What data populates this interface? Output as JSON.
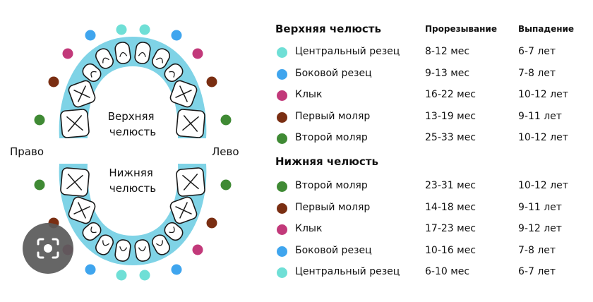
{
  "diagram": {
    "upper_label_line1": "Верхняя",
    "upper_label_line2": "челюсть",
    "lower_label_line1": "Нижняя",
    "lower_label_line2": "челюсть",
    "left_side": "Право",
    "right_side": "Лево"
  },
  "colors": {
    "central_incisor": "#6fdfd6",
    "lateral_incisor": "#3fa5ee",
    "canine": "#c2397a",
    "first_molar": "#7a2e12",
    "second_molar": "#3f8a34",
    "arch": "#7fd3e6"
  },
  "table": {
    "col_eruption": "Прорезывание",
    "col_loss": "Выпадение",
    "upper": {
      "title": "Верхняя челюсть",
      "rows": [
        {
          "tooth": "Центральный резец",
          "eruption": "8-12 мес",
          "loss": "6-7 лет",
          "color": "#6fdfd6"
        },
        {
          "tooth": "Боковой резец",
          "eruption": "9-13 мес",
          "loss": "7-8 лет",
          "color": "#3fa5ee"
        },
        {
          "tooth": "Клык",
          "eruption": "16-22 мес",
          "loss": "10-12 лет",
          "color": "#c2397a"
        },
        {
          "tooth": "Первый моляр",
          "eruption": "13-19 мес",
          "loss": "9-11 лет",
          "color": "#7a2e12"
        },
        {
          "tooth": "Второй моляр",
          "eruption": "25-33 мес",
          "loss": "10-12 лет",
          "color": "#3f8a34"
        }
      ]
    },
    "lower": {
      "title": "Нижняя челюсть",
      "rows": [
        {
          "tooth": "Второй моляр",
          "eruption": "23-31 мес",
          "loss": "10-12 лет",
          "color": "#3f8a34"
        },
        {
          "tooth": "Первый моляр",
          "eruption": "14-18 мес",
          "loss": "9-11 лет",
          "color": "#7a2e12"
        },
        {
          "tooth": "Клык",
          "eruption": "17-23 мес",
          "loss": "9-12 лет",
          "color": "#c2397a"
        },
        {
          "tooth": "Боковой резец",
          "eruption": "10-16 мес",
          "loss": "7-8 лет",
          "color": "#3fa5ee"
        },
        {
          "tooth": "Центральный резец",
          "eruption": "6-10 мес",
          "loss": "6-7 лет",
          "color": "#6fdfd6"
        }
      ]
    }
  },
  "overlay": {
    "icon": "camera-lens-icon"
  }
}
